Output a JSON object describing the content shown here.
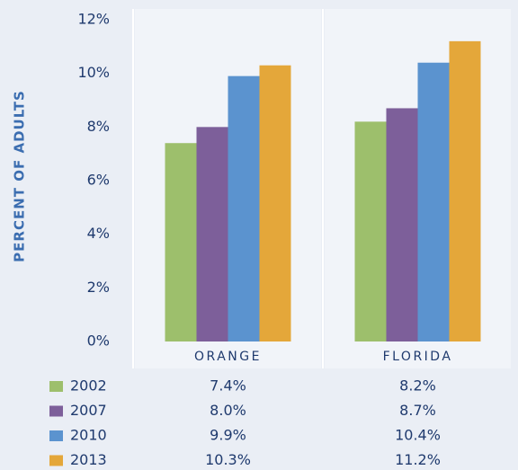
{
  "chart_data": {
    "type": "bar",
    "ylabel": "PERCENT OF ADULTS",
    "categories": [
      "ORANGE",
      "FLORIDA"
    ],
    "series": [
      {
        "name": "2002",
        "color": "#9dbf6c",
        "values": [
          7.4,
          8.2
        ],
        "value_labels": [
          "7.4%",
          "8.2%"
        ]
      },
      {
        "name": "2007",
        "color": "#7d5f9a",
        "values": [
          8.0,
          8.7
        ],
        "value_labels": [
          "8.0%",
          "8.7%"
        ]
      },
      {
        "name": "2010",
        "color": "#5b93cf",
        "values": [
          9.9,
          10.4
        ],
        "value_labels": [
          "9.9%",
          "10.4%"
        ]
      },
      {
        "name": "2013",
        "color": "#e4a73a",
        "values": [
          10.3,
          11.2
        ],
        "value_labels": [
          "10.3%",
          "11.2%"
        ]
      }
    ],
    "ylim": [
      0,
      12
    ],
    "yticks": [
      {
        "value": 0,
        "label": "0%"
      },
      {
        "value": 2,
        "label": "2%"
      },
      {
        "value": 4,
        "label": "4%"
      },
      {
        "value": 6,
        "label": "6%"
      },
      {
        "value": 8,
        "label": "8%"
      },
      {
        "value": 10,
        "label": "10%"
      },
      {
        "value": 12,
        "label": "12%"
      }
    ]
  }
}
